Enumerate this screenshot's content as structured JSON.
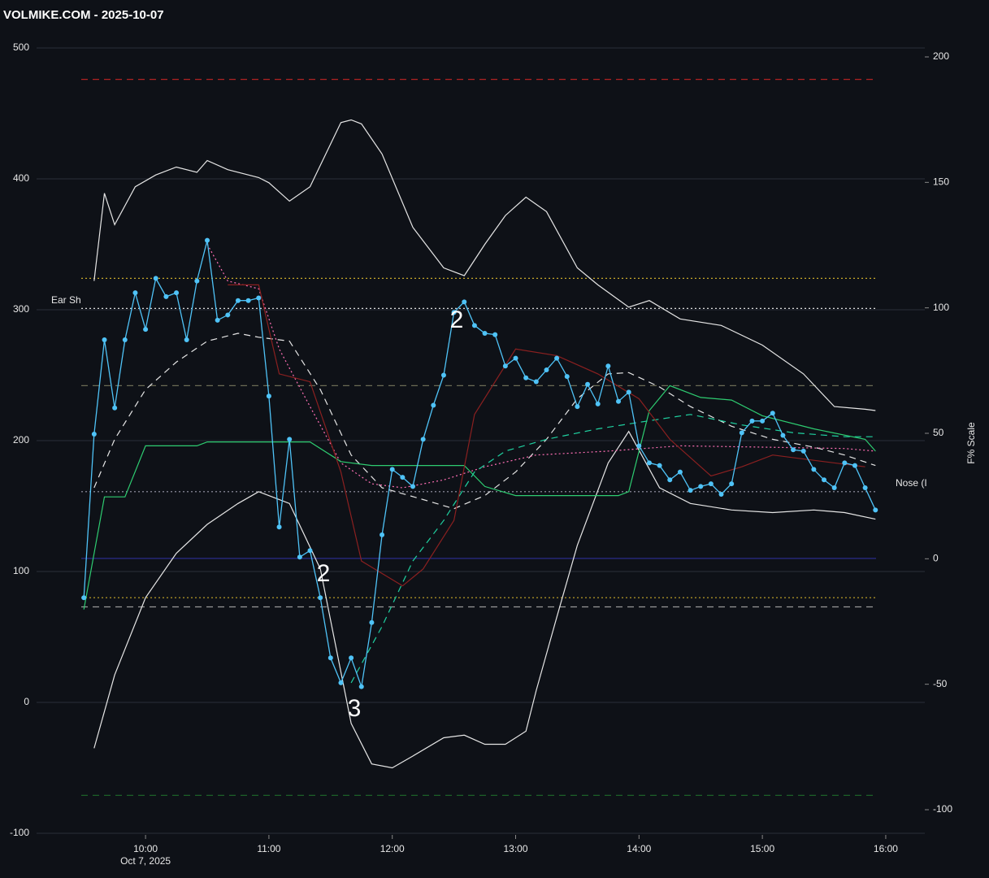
{
  "chart_data": {
    "type": "line",
    "title": "VOLMIKE.COM  - 2025-10-07",
    "y2_label": "F% Scale",
    "x_date_label": "Oct 7, 2025",
    "xlim": [
      "09:07",
      "16:19"
    ],
    "xticks": [
      "10:00",
      "11:00",
      "12:00",
      "13:00",
      "14:00",
      "15:00",
      "16:00"
    ],
    "ylim": [
      -100,
      500
    ],
    "yticks": [
      -100,
      0,
      100,
      200,
      300,
      400,
      500
    ],
    "y2lim": [
      -100,
      200
    ],
    "y2ticks": [
      -100,
      -50,
      0,
      50,
      100,
      150,
      200
    ],
    "grid": true,
    "hlines": [
      {
        "value": 476,
        "color": "#b22222",
        "style": "dashed"
      },
      {
        "value": 324,
        "color": "#c8a92a",
        "style": "dotted"
      },
      {
        "value": 301,
        "color": "#dddddd",
        "style": "dotted"
      },
      {
        "value": 242,
        "color": "#6b6b55",
        "style": "dashed"
      },
      {
        "value": 161,
        "color": "#9a9aaa",
        "style": "dotted"
      },
      {
        "value": 110,
        "color": "#2a2a8a",
        "style": "solid"
      },
      {
        "value": 80,
        "color": "#c8a92a",
        "style": "dotted"
      },
      {
        "value": 73,
        "color": "#999999",
        "style": "dashed"
      },
      {
        "value": -71,
        "color": "#1f6b2a",
        "style": "dashed"
      }
    ],
    "series": [
      {
        "name": "Upper",
        "color": "#e6e6e6",
        "style": "solid",
        "markers": false,
        "x": [
          "09:35",
          "09:40",
          "09:45",
          "09:55",
          "10:05",
          "10:15",
          "10:25",
          "10:30",
          "10:40",
          "10:55",
          "11:00",
          "11:10",
          "11:20",
          "11:35",
          "11:40",
          "11:45",
          "11:55",
          "12:10",
          "12:25",
          "12:35",
          "12:45",
          "12:55",
          "13:05",
          "13:15",
          "13:30",
          "13:40",
          "13:55",
          "14:05",
          "14:20",
          "14:40",
          "15:00",
          "15:20",
          "15:35",
          "15:50",
          "15:55"
        ],
        "values": [
          322,
          389,
          365,
          394,
          403,
          409,
          405,
          414,
          407,
          401,
          397,
          383,
          394,
          443,
          445,
          442,
          419,
          363,
          332,
          326,
          350,
          372,
          386,
          375,
          332,
          319,
          302,
          307,
          293,
          288,
          273,
          251,
          226,
          224,
          223
        ]
      },
      {
        "name": "Lower",
        "color": "#e6e6e6",
        "style": "solid",
        "markers": false,
        "x": [
          "09:35",
          "09:45",
          "10:00",
          "10:15",
          "10:30",
          "10:45",
          "10:55",
          "11:10",
          "11:25",
          "11:40",
          "11:50",
          "12:00",
          "12:10",
          "12:25",
          "12:35",
          "12:45",
          "12:55",
          "13:05",
          "13:10",
          "13:20",
          "13:30",
          "13:45",
          "13:55",
          "14:10",
          "14:25",
          "14:45",
          "15:05",
          "15:25",
          "15:40",
          "15:55"
        ],
        "values": [
          -35,
          21,
          80,
          114,
          136,
          152,
          161,
          152,
          102,
          -16,
          -47,
          -50,
          -41,
          -27,
          -25,
          -32,
          -32,
          -22,
          9,
          65,
          120,
          183,
          207,
          164,
          152,
          147,
          145,
          147,
          145,
          140
        ]
      },
      {
        "name": "Average",
        "color": "#e6e6e6",
        "style": "dashed",
        "markers": false,
        "x": [
          "09:35",
          "09:45",
          "10:00",
          "10:15",
          "10:30",
          "10:45",
          "10:55",
          "11:10",
          "11:25",
          "11:40",
          "11:55",
          "12:15",
          "12:30",
          "12:45",
          "13:00",
          "13:15",
          "13:30",
          "13:45",
          "13:55",
          "14:10",
          "14:25",
          "14:45",
          "15:05",
          "15:25",
          "15:40",
          "15:55"
        ],
        "values": [
          164,
          201,
          239,
          260,
          276,
          282,
          279,
          276,
          239,
          189,
          164,
          155,
          148,
          158,
          176,
          201,
          232,
          251,
          252,
          241,
          226,
          211,
          201,
          195,
          189,
          181
        ]
      },
      {
        "name": "Pink",
        "color": "#ff6fb5",
        "style": "dotted",
        "markers": false,
        "x": [
          "10:30",
          "10:40",
          "10:55",
          "11:05",
          "11:20",
          "11:35",
          "11:50",
          "12:05",
          "12:25",
          "12:45",
          "13:10",
          "13:45",
          "14:20",
          "15:00",
          "15:40",
          "15:55"
        ],
        "values": [
          350,
          322,
          316,
          270,
          226,
          183,
          167,
          164,
          170,
          180,
          189,
          192,
          196,
          195,
          194,
          192
        ]
      },
      {
        "name": "Green",
        "color": "#2ecc71",
        "style": "solid",
        "markers": false,
        "x": [
          "09:30",
          "09:40",
          "09:50",
          "10:00",
          "10:25",
          "10:30",
          "11:20",
          "11:35",
          "11:50",
          "12:35",
          "12:45",
          "13:00",
          "13:50",
          "13:55",
          "14:05",
          "14:15",
          "14:30",
          "14:45",
          "15:00",
          "15:25",
          "15:50",
          "15:55"
        ],
        "values": [
          71,
          157,
          157,
          196,
          196,
          199,
          199,
          184,
          181,
          181,
          165,
          158,
          158,
          161,
          223,
          242,
          233,
          231,
          219,
          209,
          201,
          192
        ]
      },
      {
        "name": "Teal",
        "color": "#1fd1a0",
        "style": "dashed",
        "markers": false,
        "x": [
          "11:40",
          "11:55",
          "12:10",
          "12:25",
          "12:40",
          "12:55",
          "13:15",
          "13:40",
          "14:00",
          "14:25",
          "14:50",
          "15:15",
          "15:40",
          "15:55"
        ],
        "values": [
          15,
          58,
          108,
          139,
          176,
          192,
          201,
          209,
          214,
          220,
          212,
          206,
          203,
          203
        ]
      },
      {
        "name": "Red",
        "color": "#8b2020",
        "style": "solid",
        "markers": false,
        "x": [
          "10:40",
          "10:55",
          "11:05",
          "11:20",
          "11:35",
          "11:45",
          "12:05",
          "12:15",
          "12:30",
          "12:40",
          "13:00",
          "13:20",
          "13:40",
          "14:00",
          "14:15",
          "14:35",
          "14:50",
          "15:05",
          "15:30",
          "15:50"
        ],
        "values": [
          319,
          319,
          251,
          245,
          176,
          108,
          89,
          102,
          139,
          220,
          270,
          265,
          251,
          232,
          201,
          173,
          180,
          189,
          184,
          180
        ]
      },
      {
        "name": "Price",
        "color": "#4fc3f7",
        "style": "solid",
        "markers": true,
        "x": [
          "09:30",
          "09:35",
          "09:40",
          "09:45",
          "09:50",
          "09:55",
          "10:00",
          "10:05",
          "10:10",
          "10:15",
          "10:20",
          "10:25",
          "10:30",
          "10:35",
          "10:40",
          "10:45",
          "10:50",
          "10:55",
          "11:00",
          "11:05",
          "11:10",
          "11:15",
          "11:20",
          "11:25",
          "11:30",
          "11:35",
          "11:40",
          "11:45",
          "11:50",
          "11:55",
          "12:00",
          "12:05",
          "12:10",
          "12:15",
          "12:20",
          "12:25",
          "12:30",
          "12:35",
          "12:40",
          "12:45",
          "12:50",
          "12:55",
          "13:00",
          "13:05",
          "13:10",
          "13:15",
          "13:20",
          "13:25",
          "13:30",
          "13:35",
          "13:40",
          "13:45",
          "13:50",
          "13:55",
          "14:00",
          "14:05",
          "14:10",
          "14:15",
          "14:20",
          "14:25",
          "14:30",
          "14:35",
          "14:40",
          "14:45",
          "14:50",
          "14:55",
          "15:00",
          "15:05",
          "15:10",
          "15:15",
          "15:20",
          "15:25",
          "15:30",
          "15:35",
          "15:40",
          "15:45",
          "15:50",
          "15:55"
        ],
        "values": [
          80,
          205,
          277,
          225,
          277,
          313,
          285,
          324,
          310,
          313,
          277,
          322,
          353,
          292,
          296,
          307,
          307,
          309,
          234,
          134,
          201,
          111,
          116,
          80,
          34,
          15,
          34,
          12,
          61,
          128,
          178,
          172,
          165,
          201,
          227,
          250,
          298,
          306,
          288,
          282,
          281,
          257,
          263,
          248,
          245,
          254,
          263,
          249,
          226,
          243,
          228,
          257,
          230,
          237,
          196,
          183,
          181,
          170,
          176,
          162,
          165,
          167,
          159,
          167,
          206,
          215,
          215,
          221,
          204,
          193,
          192,
          178,
          170,
          164,
          183,
          181,
          164,
          147
        ]
      }
    ],
    "annotations": [
      "2",
      "2",
      "3",
      "Ear Sh",
      "Nose (I"
    ]
  }
}
